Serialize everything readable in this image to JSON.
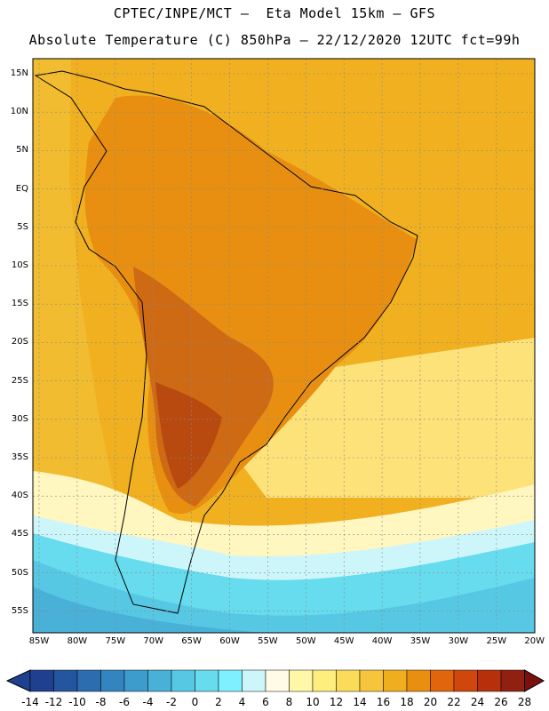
{
  "title_line1": "CPTEC/INPE/MCT –  Eta Model 15km – GFS",
  "title_line2": "Absolute Temperature (C) 850hPa – 22/12/2020 12UTC fct=99h",
  "lat_labels": [
    "15N",
    "10N",
    "5N",
    "EQ",
    "5S",
    "10S",
    "15S",
    "20S",
    "25S",
    "30S",
    "35S",
    "40S",
    "45S",
    "50S",
    "55S"
  ],
  "lon_labels": [
    "85W",
    "80W",
    "75W",
    "70W",
    "65W",
    "60W",
    "55W",
    "50W",
    "45W",
    "40W",
    "35W",
    "30W",
    "25W",
    "20W"
  ],
  "colorbar": {
    "labels": [
      "-14",
      "-12",
      "-10",
      "-8",
      "-6",
      "-4",
      "-2",
      "0",
      "2",
      "4",
      "6",
      "8",
      "10",
      "12",
      "14",
      "16",
      "18",
      "20",
      "22",
      "24",
      "26",
      "28"
    ],
    "colors": [
      "#1f3f8f",
      "#2456a0",
      "#2c6db0",
      "#3385bf",
      "#3e9ccc",
      "#49b1d8",
      "#57c8e3",
      "#66dcee",
      "#7ff0ff",
      "#cdf6fb",
      "#fffbe6",
      "#fef8a8",
      "#fdee7e",
      "#fbdc5a",
      "#f6c53c",
      "#efae1e",
      "#e88f12",
      "#e0650c",
      "#cf470b",
      "#b5300b",
      "#902010"
    ]
  }
}
